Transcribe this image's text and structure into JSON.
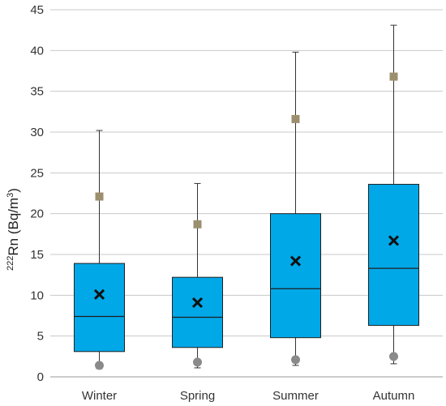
{
  "chart_data": {
    "type": "box",
    "ylabel": {
      "iso_sup": "222",
      "main": "Rn (Bq/m",
      "unit_sup": "3",
      "close": ")"
    },
    "ylim": [
      0,
      45
    ],
    "yticks": [
      0,
      5,
      10,
      15,
      20,
      25,
      30,
      35,
      40,
      45
    ],
    "grid": true,
    "categories": [
      "Winter",
      "Spring",
      "Summer",
      "Autumn"
    ],
    "boxes": [
      {
        "category": "Winter",
        "min": 1.0,
        "q1": 3.1,
        "median": 7.4,
        "q3": 13.9,
        "max": 30.2,
        "mean": 10.1,
        "p5": 1.4,
        "p95": 22.1
      },
      {
        "category": "Spring",
        "min": 1.1,
        "q1": 3.6,
        "median": 7.3,
        "q3": 12.2,
        "max": 23.7,
        "mean": 9.1,
        "p5": 1.8,
        "p95": 18.7
      },
      {
        "category": "Summer",
        "min": 1.4,
        "q1": 4.8,
        "median": 10.8,
        "q3": 20.0,
        "max": 39.8,
        "mean": 14.2,
        "p5": 2.1,
        "p95": 31.6
      },
      {
        "category": "Autumn",
        "min": 1.6,
        "q1": 6.3,
        "median": 13.3,
        "q3": 23.6,
        "max": 43.1,
        "mean": 16.7,
        "p5": 2.5,
        "p95": 36.8
      }
    ],
    "colors": {
      "box_fill": "#00a8e8",
      "box_stroke": "#1f1f1f",
      "grid": "#c8c8c8",
      "mean_marker": "#111111",
      "upper_marker": "#9c8f6e",
      "lower_marker": "#8a8a8a"
    }
  }
}
